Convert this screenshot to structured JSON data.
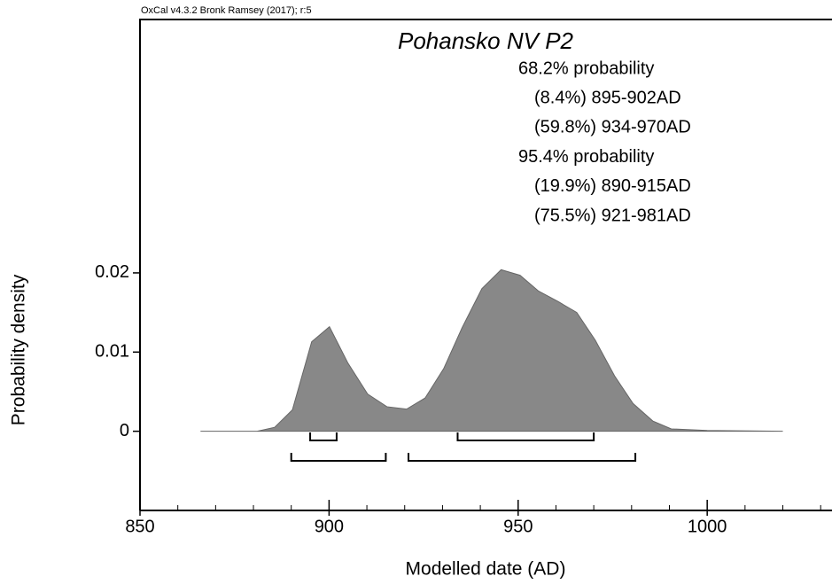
{
  "chart_data": {
    "type": "area",
    "software_note": "OxCal v4.3.2 Bronk Ramsey (2017); r:5",
    "title": "Pohansko NV P2",
    "xlabel": "Modelled date (AD)",
    "ylabel": "Probability density",
    "x": [
      866,
      881,
      885.6,
      890.3,
      895.4,
      900.1,
      905,
      910.2,
      915.3,
      920.5,
      925.4,
      930.3,
      935.2,
      940.4,
      945.5,
      950.5,
      955.4,
      960.5,
      965.5,
      970.4,
      975.5,
      980.4,
      985.6,
      990.5,
      1000,
      1020
    ],
    "values": [
      0,
      0,
      0.0005,
      0.0027,
      0.0113,
      0.0132,
      0.0086,
      0.0047,
      0.0031,
      0.0028,
      0.0042,
      0.0079,
      0.0131,
      0.018,
      0.0204,
      0.0197,
      0.0177,
      0.0164,
      0.015,
      0.0115,
      0.007,
      0.0035,
      0.0013,
      0.0003,
      0.0001,
      0
    ],
    "color": "#888888",
    "xlim": [
      850,
      1033
    ],
    "ylim": [
      -0.01,
      0.052
    ],
    "xticks": [
      850,
      900,
      950,
      1000
    ],
    "xminor_ticks": [
      860,
      870,
      880,
      890,
      910,
      920,
      930,
      940,
      960,
      970,
      980,
      990,
      1010,
      1020,
      1030
    ],
    "yticks": [
      0,
      0.01,
      0.02
    ],
    "range_sets": [
      {
        "label": "68.2% probability",
        "intervals": [
          {
            "label": "(8.4%) 895-902AD",
            "from": 895,
            "to": 902
          },
          {
            "label": "(59.8%) 934-970AD",
            "from": 934,
            "to": 970
          }
        ]
      },
      {
        "label": "95.4% probability",
        "intervals": [
          {
            "label": "(19.9%) 890-915AD",
            "from": 890,
            "to": 915
          },
          {
            "label": "(75.5%) 921-981AD",
            "from": 921,
            "to": 981
          }
        ]
      }
    ]
  }
}
